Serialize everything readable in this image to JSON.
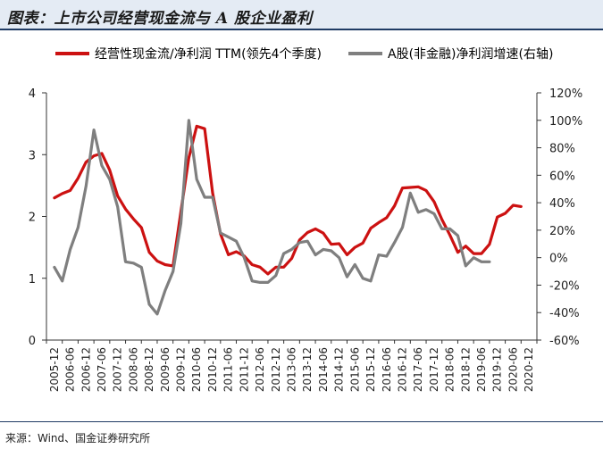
{
  "header": {
    "title": "图表：上市公司经营现金流与 A 股企业盈利"
  },
  "source": "来源：Wind、国金证券研究所",
  "colors": {
    "series_red": "#cc1111",
    "series_gray": "#7f7f7f",
    "axis": "#333333"
  },
  "chart_data": {
    "type": "line",
    "x_labels": [
      "2005-12",
      "2006-06",
      "2006-12",
      "2007-06",
      "2007-12",
      "2008-06",
      "2008-12",
      "2009-06",
      "2009-12",
      "2010-06",
      "2010-12",
      "2011-06",
      "2011-12",
      "2012-06",
      "2012-12",
      "2013-06",
      "2013-12",
      "2014-06",
      "2014-12",
      "2015-06",
      "2015-12",
      "2016-06",
      "2016-12",
      "2017-06",
      "2017-12",
      "2018-06",
      "2018-12",
      "2019-06",
      "2019-12",
      "2020-06",
      "2020-12"
    ],
    "left_axis": {
      "min": 0,
      "max": 4,
      "ticks": [
        "0",
        "1",
        "2",
        "3",
        "4"
      ]
    },
    "right_axis": {
      "min": -60,
      "max": 120,
      "ticks": [
        "-60%",
        "-40%",
        "-20%",
        "0%",
        "20%",
        "40%",
        "60%",
        "80%",
        "100%",
        "120%"
      ]
    },
    "series": [
      {
        "name": "经营性现金流/净利润 TTM(领先4个季度)",
        "axis": "left",
        "points": [
          [
            0,
            2.3
          ],
          [
            0.5,
            2.37
          ],
          [
            1,
            2.42
          ],
          [
            1.5,
            2.62
          ],
          [
            2,
            2.88
          ],
          [
            2.5,
            2.98
          ],
          [
            3,
            3.02
          ],
          [
            3.5,
            2.75
          ],
          [
            4,
            2.33
          ],
          [
            4.5,
            2.12
          ],
          [
            5,
            1.96
          ],
          [
            5.5,
            1.82
          ],
          [
            6,
            1.42
          ],
          [
            6.5,
            1.28
          ],
          [
            7,
            1.22
          ],
          [
            7.5,
            1.2
          ],
          [
            8,
            2.08
          ],
          [
            8.5,
            2.95
          ],
          [
            9,
            3.46
          ],
          [
            9.5,
            3.42
          ],
          [
            10,
            2.38
          ],
          [
            10.5,
            1.72
          ],
          [
            11,
            1.38
          ],
          [
            11.5,
            1.43
          ],
          [
            12,
            1.36
          ],
          [
            12.5,
            1.22
          ],
          [
            13,
            1.18
          ],
          [
            13.5,
            1.07
          ],
          [
            14,
            1.18
          ],
          [
            14.5,
            1.18
          ],
          [
            15,
            1.32
          ],
          [
            15.5,
            1.62
          ],
          [
            16,
            1.74
          ],
          [
            16.5,
            1.8
          ],
          [
            17,
            1.73
          ],
          [
            17.5,
            1.55
          ],
          [
            18,
            1.56
          ],
          [
            18.5,
            1.38
          ],
          [
            19,
            1.5
          ],
          [
            19.5,
            1.57
          ],
          [
            20,
            1.81
          ],
          [
            20.5,
            1.9
          ],
          [
            21,
            1.98
          ],
          [
            21.5,
            2.17
          ],
          [
            22,
            2.46
          ],
          [
            22.5,
            2.47
          ],
          [
            23,
            2.48
          ],
          [
            23.5,
            2.42
          ],
          [
            24,
            2.24
          ],
          [
            24.5,
            1.95
          ],
          [
            25,
            1.7
          ],
          [
            25.5,
            1.42
          ],
          [
            26,
            1.52
          ],
          [
            26.5,
            1.4
          ],
          [
            27,
            1.4
          ],
          [
            27.5,
            1.55
          ],
          [
            28,
            1.99
          ],
          [
            28.5,
            2.05
          ],
          [
            29,
            2.18
          ],
          [
            29.5,
            2.16
          ]
        ]
      },
      {
        "name": "A股(非金融)净利润增速(右轴)",
        "axis": "right",
        "points": [
          [
            0,
            -7
          ],
          [
            0.5,
            -17
          ],
          [
            1,
            6
          ],
          [
            1.5,
            22
          ],
          [
            2,
            52
          ],
          [
            2.5,
            93
          ],
          [
            3,
            67
          ],
          [
            3.5,
            57
          ],
          [
            4,
            37
          ],
          [
            4.5,
            -3
          ],
          [
            5,
            -4
          ],
          [
            5.5,
            -7
          ],
          [
            6,
            -34
          ],
          [
            6.5,
            -41
          ],
          [
            7,
            -24
          ],
          [
            7.5,
            -10
          ],
          [
            8,
            25
          ],
          [
            8.5,
            100
          ],
          [
            9,
            57
          ],
          [
            9.5,
            44
          ],
          [
            10,
            44
          ],
          [
            10.5,
            18
          ],
          [
            11,
            15
          ],
          [
            11.5,
            12
          ],
          [
            12,
            0
          ],
          [
            12.5,
            -17
          ],
          [
            13,
            -18
          ],
          [
            13.5,
            -18
          ],
          [
            14,
            -13
          ],
          [
            14.5,
            3
          ],
          [
            15,
            6
          ],
          [
            15.5,
            11
          ],
          [
            16,
            12
          ],
          [
            16.5,
            2
          ],
          [
            17,
            6
          ],
          [
            17.5,
            5
          ],
          [
            18,
            0
          ],
          [
            18.5,
            -14
          ],
          [
            19,
            -5
          ],
          [
            19.5,
            -15
          ],
          [
            20,
            -17
          ],
          [
            20.5,
            2
          ],
          [
            21,
            1
          ],
          [
            21.5,
            11
          ],
          [
            22,
            22
          ],
          [
            22.5,
            47
          ],
          [
            23,
            33
          ],
          [
            23.5,
            35
          ],
          [
            24,
            32
          ],
          [
            24.5,
            21
          ],
          [
            25,
            21
          ],
          [
            25.5,
            16
          ],
          [
            26,
            -6
          ],
          [
            26.5,
            0
          ],
          [
            27,
            -3
          ],
          [
            27.5,
            -3
          ]
        ]
      }
    ]
  }
}
